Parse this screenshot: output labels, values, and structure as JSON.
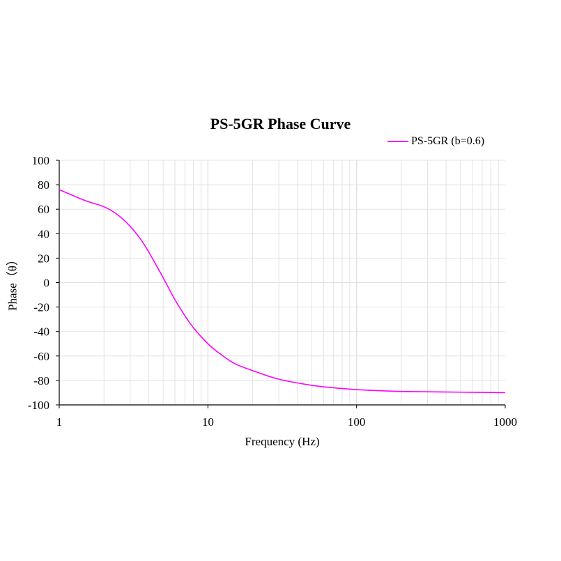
{
  "chart_data": {
    "type": "line",
    "title": "PS-5GR Phase Curve",
    "xlabel": "Frequency (Hz)",
    "ylabel": "Phase（θ）",
    "x_scale": "log",
    "xlim": [
      1,
      1000
    ],
    "ylim": [
      -100,
      100
    ],
    "x_ticks": [
      "1",
      "10",
      "100",
      "1000"
    ],
    "y_ticks": [
      "100",
      "80",
      "60",
      "40",
      "20",
      "0",
      "-20",
      "-40",
      "-60",
      "-80",
      "-100"
    ],
    "grid": true,
    "legend_position": "top-right",
    "series": [
      {
        "name": "PS-5GR (b=0.6)",
        "color": "#ff00ff",
        "x": [
          1,
          1.5,
          2,
          2.5,
          3,
          3.5,
          4,
          5,
          6,
          7,
          8,
          10,
          12,
          15,
          20,
          30,
          50,
          70,
          100,
          150,
          200,
          300,
          500,
          700,
          1000
        ],
        "y": [
          76,
          67,
          62,
          55,
          46,
          36,
          25,
          4,
          -14,
          -27,
          -37,
          -50,
          -58,
          -66,
          -72,
          -79,
          -84,
          -86,
          -87.5,
          -88.5,
          -89,
          -89.3,
          -89.6,
          -89.8,
          -90
        ]
      }
    ]
  }
}
